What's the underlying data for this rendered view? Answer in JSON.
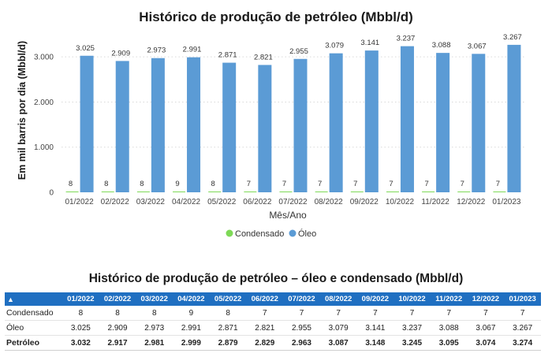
{
  "chart_data": {
    "type": "bar",
    "title": "Histórico de produção de petróleo (Mbbl/d)",
    "xlabel": "Mês/Ano",
    "ylabel": "Em mil barris por dia (Mbbl/d)",
    "ylim": [
      0,
      3300
    ],
    "yticks": [
      0,
      1000,
      2000,
      3000
    ],
    "ytick_labels": [
      "0",
      "1.000",
      "2.000",
      "3.000"
    ],
    "grid": true,
    "legend_position": "bottom-center",
    "categories": [
      "01/2022",
      "02/2022",
      "03/2022",
      "04/2022",
      "05/2022",
      "06/2022",
      "07/2022",
      "08/2022",
      "09/2022",
      "10/2022",
      "11/2022",
      "12/2022",
      "01/2023"
    ],
    "series": [
      {
        "name": "Condensado",
        "color": "#7ed957",
        "values": [
          8,
          8,
          8,
          9,
          8,
          7,
          7,
          7,
          7,
          7,
          7,
          7,
          7
        ],
        "labels": [
          "8",
          "8",
          "8",
          "9",
          "8",
          "7",
          "7",
          "7",
          "7",
          "7",
          "7",
          "7",
          "7"
        ]
      },
      {
        "name": "Óleo",
        "color": "#5b9bd5",
        "values": [
          3025,
          2909,
          2973,
          2991,
          2871,
          2821,
          2955,
          3079,
          3141,
          3237,
          3088,
          3067,
          3267
        ],
        "labels": [
          "3.025",
          "2.909",
          "2.973",
          "2.991",
          "2.871",
          "2.821",
          "2.955",
          "3.079",
          "3.141",
          "3.237",
          "3.088",
          "3.067",
          "3.267"
        ]
      }
    ]
  },
  "table": {
    "title": "Histórico de produção de petróleo – óleo e condensado (Mbbl/d)",
    "corner_icon": "sort-up-triangle",
    "header_color": "#1f6fc1",
    "columns": [
      "01/2022",
      "02/2022",
      "03/2022",
      "04/2022",
      "05/2022",
      "06/2022",
      "07/2022",
      "08/2022",
      "09/2022",
      "10/2022",
      "11/2022",
      "12/2022",
      "01/2023"
    ],
    "rows": [
      {
        "label": "Condensado",
        "values": [
          "8",
          "8",
          "8",
          "9",
          "8",
          "7",
          "7",
          "7",
          "7",
          "7",
          "7",
          "7",
          "7"
        ]
      },
      {
        "label": "Óleo",
        "values": [
          "3.025",
          "2.909",
          "2.973",
          "2.991",
          "2.871",
          "2.821",
          "2.955",
          "3.079",
          "3.141",
          "3.237",
          "3.088",
          "3.067",
          "3.267"
        ]
      },
      {
        "label": "Petróleo",
        "values": [
          "3.032",
          "2.917",
          "2.981",
          "2.999",
          "2.879",
          "2.829",
          "2.963",
          "3.087",
          "3.148",
          "3.245",
          "3.095",
          "3.074",
          "3.274"
        ]
      }
    ]
  }
}
